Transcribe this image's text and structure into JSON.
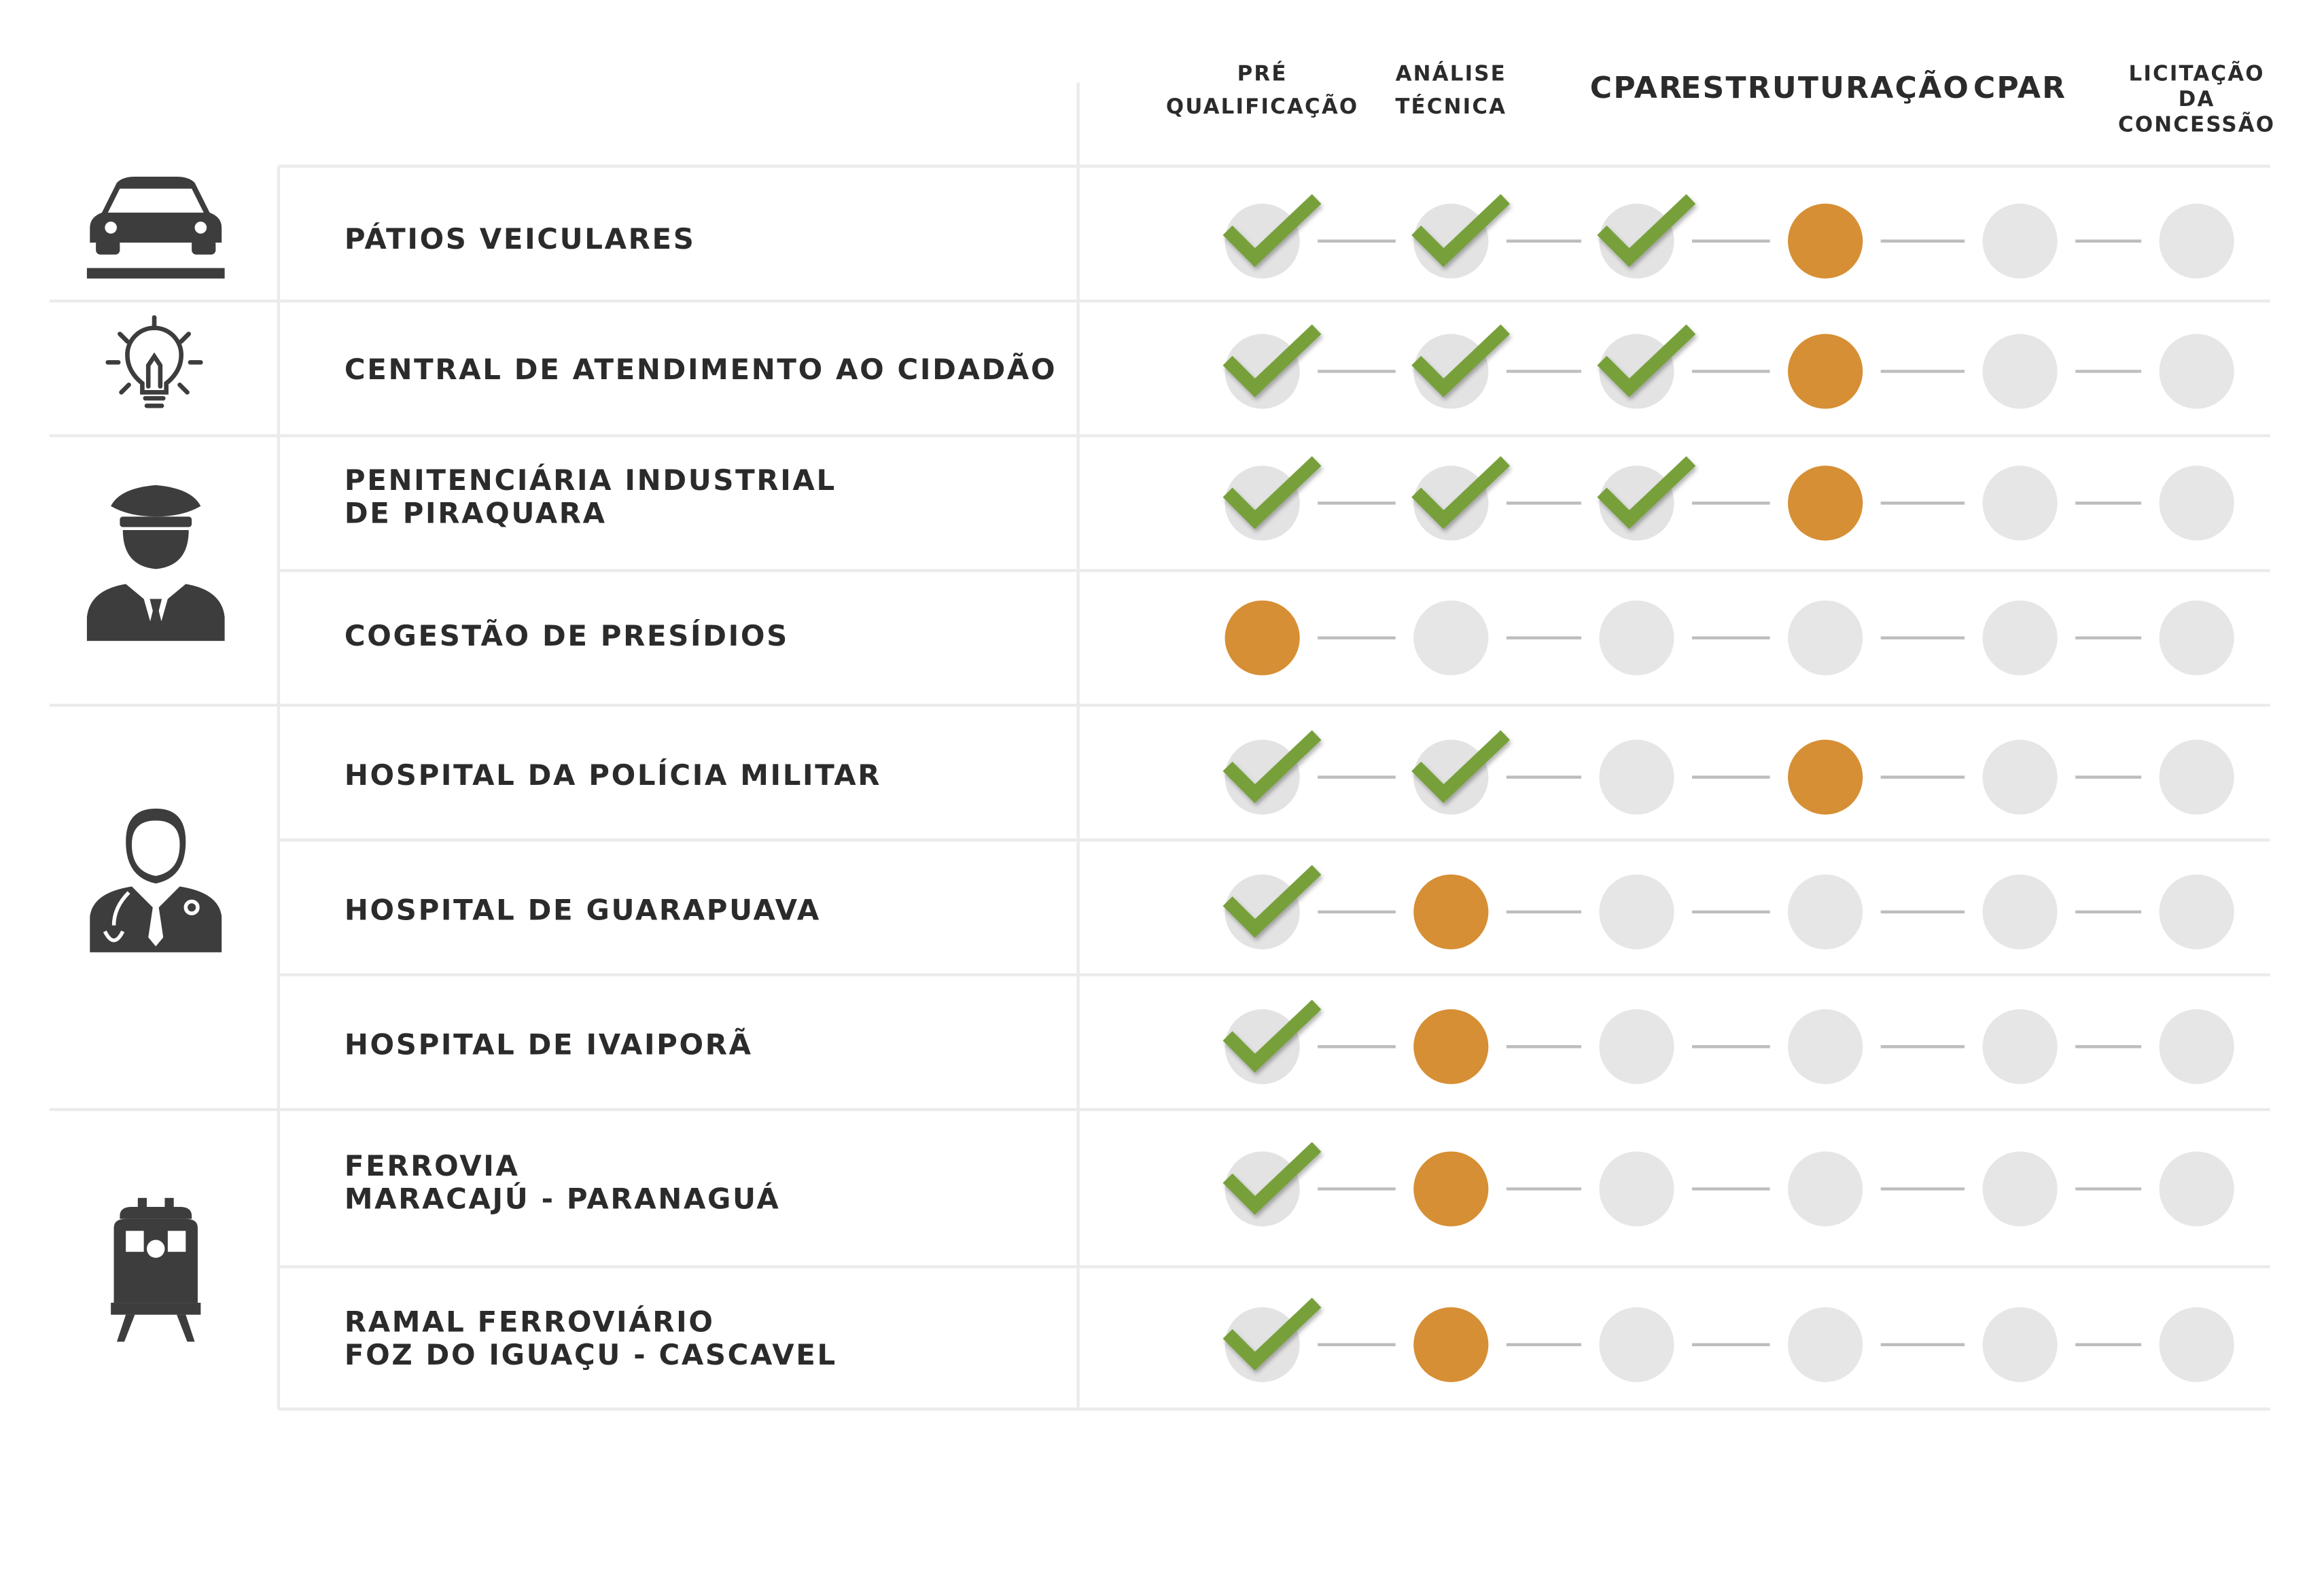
{
  "header": {
    "columns": [
      [
        "PRÉ",
        "QUALIFICAÇÃO"
      ],
      [
        "ANÁLISE",
        "TÉCNICA"
      ],
      [
        "CPAR"
      ],
      [
        "ESTRUTURAÇÃO"
      ],
      [
        "CPAR"
      ],
      [
        "LICITAÇÃO",
        "DA",
        "CONCESSÃO"
      ]
    ]
  },
  "table": {
    "rows": [
      {
        "name": [
          "PÁTIOS VEICULARES"
        ],
        "cells": [
          {
            "fill": "#e3e3e3",
            "check": "#77a03a"
          },
          {
            "fill": "#e3e3e3",
            "check": "#77a03a"
          },
          {
            "fill": "#e3e3e3",
            "check": "#77a03a"
          },
          {
            "fill": "#d68f34"
          },
          {
            "fill": "#e6e6e6"
          },
          {
            "fill": "#e6e6e6"
          }
        ]
      },
      {
        "name": [
          "CENTRAL DE ATENDIMENTO AO CIDADÃO"
        ],
        "cells": [
          {
            "fill": "#e3e3e3",
            "check": "#77a03a"
          },
          {
            "fill": "#e3e3e3",
            "check": "#77a03a"
          },
          {
            "fill": "#e3e3e3",
            "check": "#77a03a"
          },
          {
            "fill": "#d68f34"
          },
          {
            "fill": "#e6e6e6"
          },
          {
            "fill": "#e6e6e6"
          }
        ]
      },
      {
        "name": [
          "PENITENCIÁRIA INDUSTRIAL",
          "DE PIRAQUARA"
        ],
        "cells": [
          {
            "fill": "#e3e3e3",
            "check": "#77a03a"
          },
          {
            "fill": "#e3e3e3",
            "check": "#77a03a"
          },
          {
            "fill": "#e3e3e3",
            "check": "#77a03a"
          },
          {
            "fill": "#d68f34"
          },
          {
            "fill": "#e6e6e6"
          },
          {
            "fill": "#e6e6e6"
          }
        ]
      },
      {
        "name": [
          "COGESTÃO DE PRESÍDIOS"
        ],
        "cells": [
          {
            "fill": "#d68f34"
          },
          {
            "fill": "#e6e6e6"
          },
          {
            "fill": "#e6e6e6"
          },
          {
            "fill": "#e6e6e6"
          },
          {
            "fill": "#e6e6e6"
          },
          {
            "fill": "#e6e6e6"
          }
        ]
      },
      {
        "name": [
          "HOSPITAL DA POLÍCIA MILITAR"
        ],
        "cells": [
          {
            "fill": "#e3e3e3",
            "check": "#77a03a"
          },
          {
            "fill": "#e3e3e3",
            "check": "#77a03a"
          },
          {
            "fill": "#e6e6e6"
          },
          {
            "fill": "#d68f34"
          },
          {
            "fill": "#e6e6e6"
          },
          {
            "fill": "#e6e6e6"
          }
        ]
      },
      {
        "name": [
          "HOSPITAL DE GUARAPUAVA"
        ],
        "cells": [
          {
            "fill": "#e3e3e3",
            "check": "#77a03a"
          },
          {
            "fill": "#d68f34"
          },
          {
            "fill": "#e6e6e6"
          },
          {
            "fill": "#e6e6e6"
          },
          {
            "fill": "#e6e6e6"
          },
          {
            "fill": "#e6e6e6"
          }
        ]
      },
      {
        "name": [
          "HOSPITAL DE IVAIPORÃ"
        ],
        "cells": [
          {
            "fill": "#e3e3e3",
            "check": "#77a03a"
          },
          {
            "fill": "#d68f34"
          },
          {
            "fill": "#e6e6e6"
          },
          {
            "fill": "#e6e6e6"
          },
          {
            "fill": "#e6e6e6"
          },
          {
            "fill": "#e6e6e6"
          }
        ]
      },
      {
        "name": [
          "FERROVIA",
          "MARACAJÚ - PARANAGUÁ"
        ],
        "cells": [
          {
            "fill": "#e3e3e3",
            "check": "#77a03a"
          },
          {
            "fill": "#d68f34"
          },
          {
            "fill": "#e6e6e6"
          },
          {
            "fill": "#e6e6e6"
          },
          {
            "fill": "#e6e6e6"
          },
          {
            "fill": "#e6e6e6"
          }
        ]
      },
      {
        "name": [
          "RAMAL FERROVIÁRIO",
          "FOZ DO IGUAÇU - CASCAVEL"
        ],
        "cells": [
          {
            "fill": "#e3e3e3",
            "check": "#77a03a"
          },
          {
            "fill": "#d68f34"
          },
          {
            "fill": "#e6e6e6"
          },
          {
            "fill": "#e6e6e6"
          },
          {
            "fill": "#e6e6e6"
          },
          {
            "fill": "#e6e6e6"
          }
        ]
      }
    ]
  }
}
